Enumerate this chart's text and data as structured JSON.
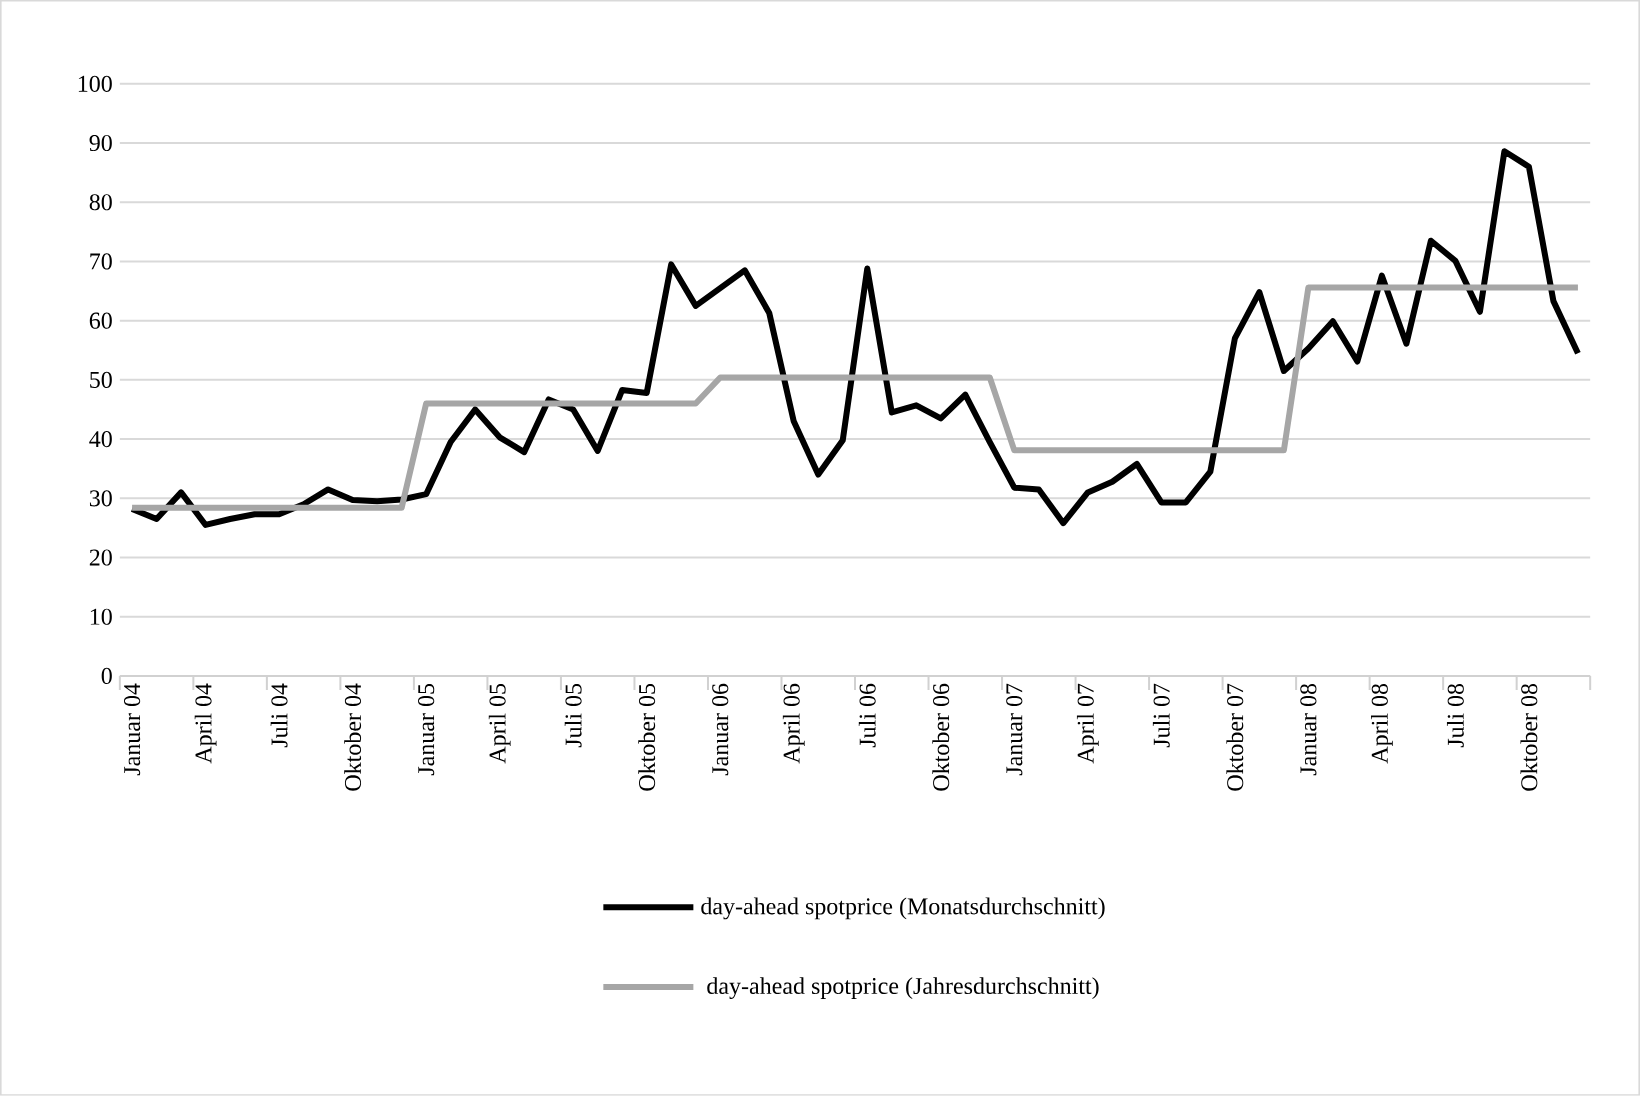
{
  "chart_data": {
    "type": "line",
    "categories": [
      "Januar 04",
      null,
      null,
      "April 04",
      null,
      null,
      "Juli 04",
      null,
      null,
      "Oktober 04",
      null,
      null,
      "Januar 05",
      null,
      null,
      "April 05",
      null,
      null,
      "Juli 05",
      null,
      null,
      "Oktober 05",
      null,
      null,
      "Januar 06",
      null,
      null,
      "April 06",
      null,
      null,
      "Juli 06",
      null,
      null,
      "Oktober 06",
      null,
      null,
      "Januar 07",
      null,
      null,
      "April 07",
      null,
      null,
      "Juli 07",
      null,
      null,
      "Oktober 07",
      null,
      null,
      "Januar 08",
      null,
      null,
      "April 08",
      null,
      null,
      "Juli 08",
      null,
      null,
      "Oktober 08",
      null,
      null
    ],
    "series": [
      {
        "name": "day-ahead spotprice (Monatsdurchschnitt)",
        "color": "#000000",
        "values": [
          28.2,
          26.5,
          31,
          25.5,
          26.5,
          27.3,
          27.3,
          29,
          31.5,
          29.7,
          29.5,
          29.8,
          30.7,
          39.5,
          45,
          40.3,
          37.8,
          46.7,
          45,
          38,
          48.3,
          47.8,
          69.5,
          62.5,
          65.5,
          68.5,
          61.3,
          43,
          34,
          39.8,
          68.8,
          44.5,
          45.7,
          43.5,
          47.5,
          39.5,
          31.8,
          31.5,
          25.8,
          31,
          32.8,
          35.8,
          29.3,
          29.3,
          34.5,
          57,
          64.8,
          51.5,
          55.3,
          59.9,
          53.1,
          67.6,
          56.1,
          73.5,
          70.1,
          61.5,
          88.6,
          86,
          63.3,
          54.5
        ]
      },
      {
        "name": "day-ahead spotprice (Jahresdurchschnitt)",
        "color": "#a6a6a6",
        "values": [
          28.4,
          28.4,
          28.4,
          28.4,
          28.4,
          28.4,
          28.4,
          28.4,
          28.4,
          28.4,
          28.4,
          28.4,
          46,
          46,
          46,
          46,
          46,
          46,
          46,
          46,
          46,
          46,
          46,
          46,
          50.4,
          50.4,
          50.4,
          50.4,
          50.4,
          50.4,
          50.4,
          50.4,
          50.4,
          50.4,
          50.4,
          50.4,
          38.1,
          38.1,
          38.1,
          38.1,
          38.1,
          38.1,
          38.1,
          38.1,
          38.1,
          38.1,
          38.1,
          38.1,
          65.6,
          65.6,
          65.6,
          65.6,
          65.6,
          65.6,
          65.6,
          65.6,
          65.6,
          65.6,
          65.6,
          65.6
        ]
      }
    ],
    "ylim": [
      0,
      100
    ],
    "yticks": [
      0,
      10,
      20,
      30,
      40,
      50,
      60,
      70,
      80,
      90,
      100
    ],
    "grid": "y",
    "legend": "bottom",
    "line_style": "solid"
  }
}
